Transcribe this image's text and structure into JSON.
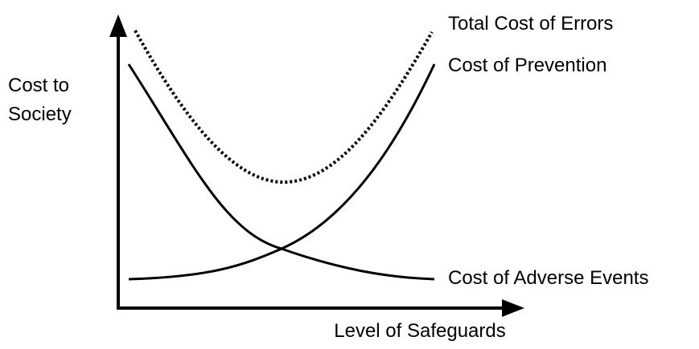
{
  "diagram": {
    "y_axis_label": [
      "Cost to",
      "Society"
    ],
    "x_axis_label": "Level of Safeguards",
    "curves": [
      {
        "label": "Total Cost of Errors"
      },
      {
        "label": "Cost of Prevention"
      },
      {
        "label": "Cost of Adverse Events"
      }
    ]
  }
}
